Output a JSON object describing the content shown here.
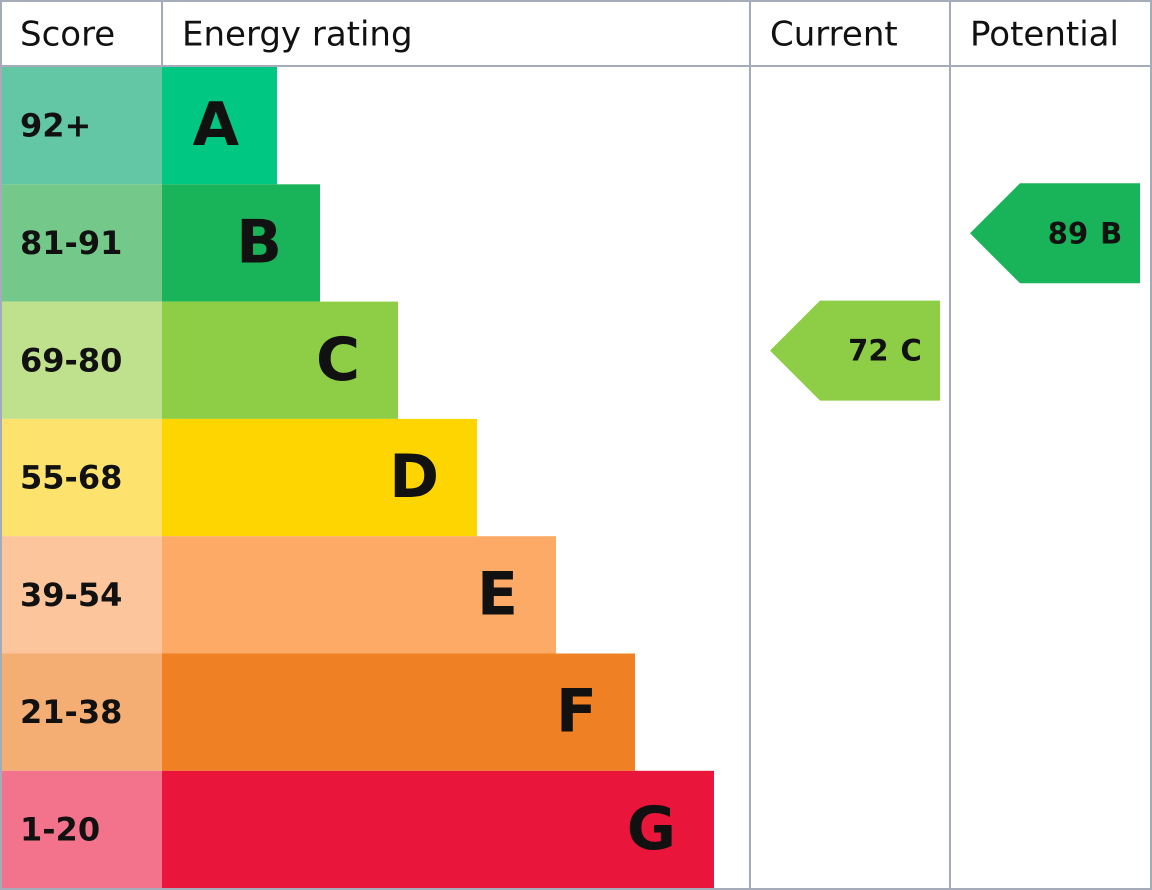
{
  "header": {
    "score": "Score",
    "rating": "Energy rating",
    "current": "Current",
    "potential": "Potential"
  },
  "rows": [
    {
      "score": "92+",
      "letter": "A",
      "color": "#00c781",
      "score_color": "#63c6a4"
    },
    {
      "score": "81-91",
      "letter": "B",
      "color": "#19b459",
      "score_color": "#74c98a"
    },
    {
      "score": "69-80",
      "letter": "C",
      "color": "#8dce46",
      "score_color": "#bfe08c"
    },
    {
      "score": "55-68",
      "letter": "D",
      "color": "#ffd500",
      "score_color": "#fde36e"
    },
    {
      "score": "39-54",
      "letter": "E",
      "color": "#fcaa65",
      "score_color": "#fdc59b"
    },
    {
      "score": "21-38",
      "letter": "F",
      "color": "#ef8023",
      "score_color": "#f4ad72"
    },
    {
      "score": "1-20",
      "letter": "G",
      "color": "#e9153b",
      "score_color": "#f2738b"
    }
  ],
  "current": {
    "value": 72,
    "letter": "C"
  },
  "potential": {
    "value": 89,
    "letter": "B"
  }
}
